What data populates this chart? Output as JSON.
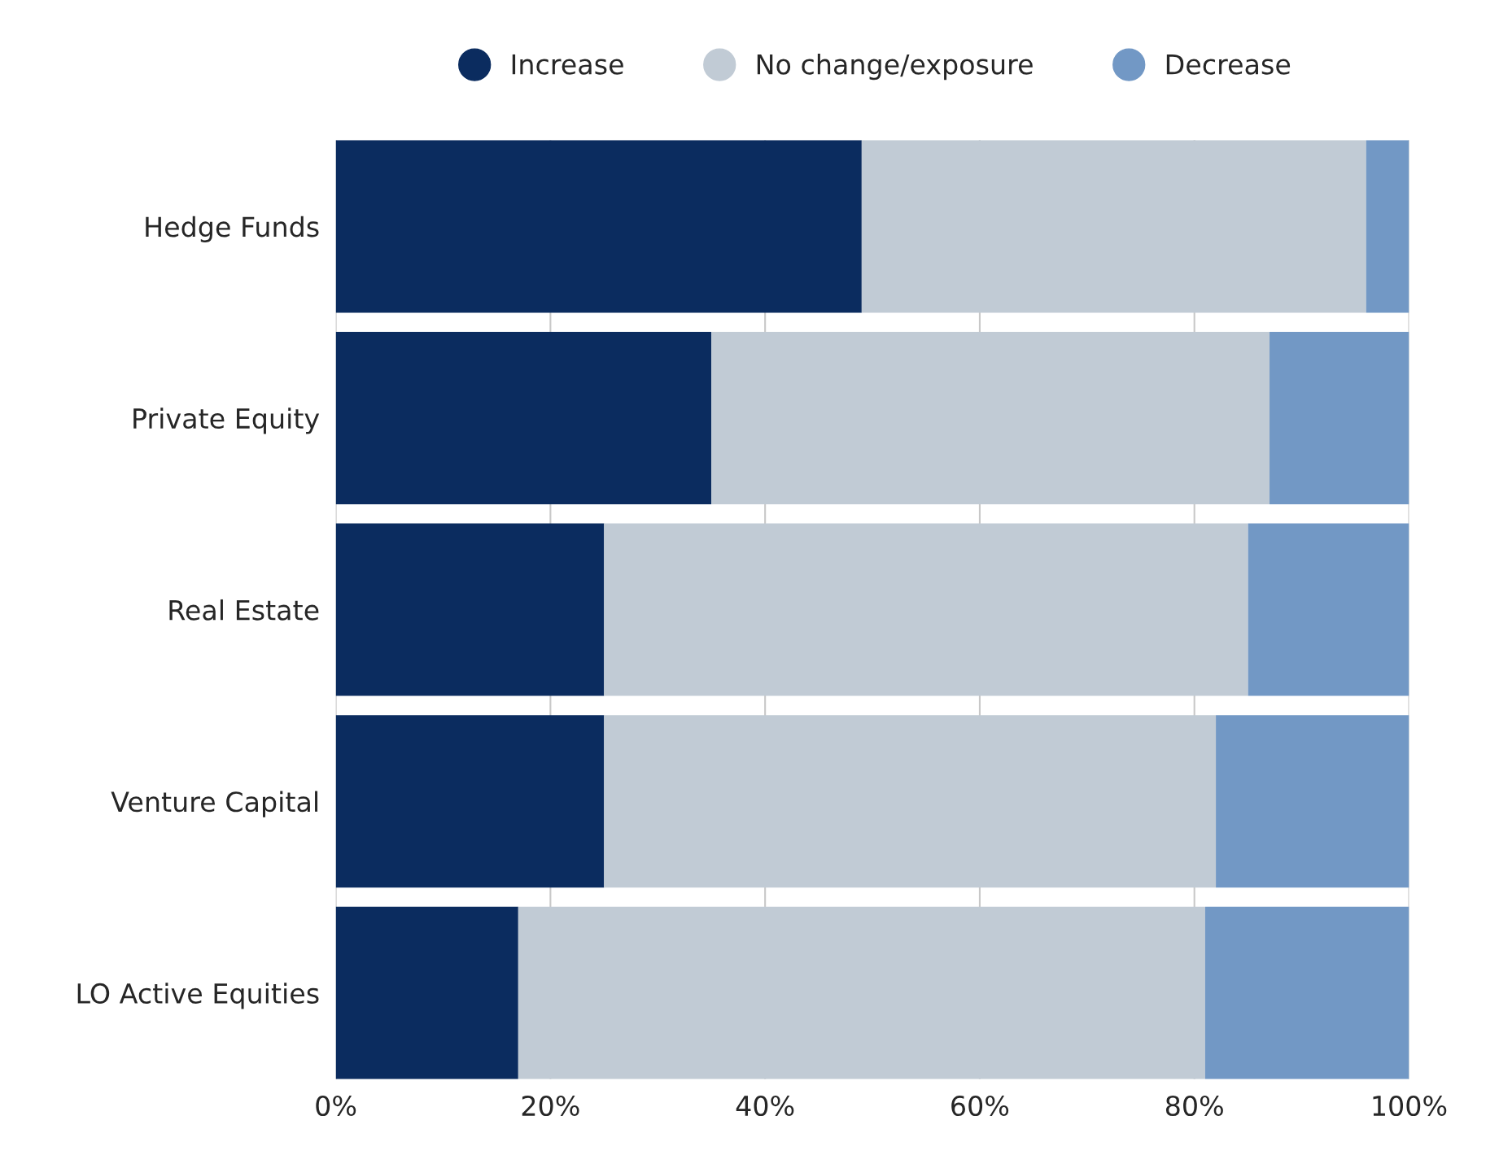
{
  "chart_data": {
    "type": "bar",
    "orientation": "horizontal",
    "stacked": true,
    "categories": [
      "Hedge Funds",
      "Private Equity",
      "Real Estate",
      "Venture Capital",
      "LO Active Equities"
    ],
    "series": [
      {
        "name": "Increase",
        "color": "#0b2c5f",
        "values": [
          49,
          35,
          25,
          25,
          17
        ]
      },
      {
        "name": "No change/exposure",
        "color": "#c1cbd5",
        "values": [
          47,
          52,
          60,
          57,
          64
        ]
      },
      {
        "name": "Decrease",
        "color": "#7298c5",
        "values": [
          4,
          13,
          15,
          18,
          19
        ]
      }
    ],
    "xlim": [
      0,
      100
    ],
    "xticks": [
      {
        "value": 0,
        "label": "0%"
      },
      {
        "value": 20,
        "label": "20%"
      },
      {
        "value": 40,
        "label": "40%"
      },
      {
        "value": 60,
        "label": "60%"
      },
      {
        "value": 80,
        "label": "80%"
      },
      {
        "value": 100,
        "label": "100%"
      }
    ],
    "grid": "x",
    "legend": "top",
    "marker": "circle"
  }
}
